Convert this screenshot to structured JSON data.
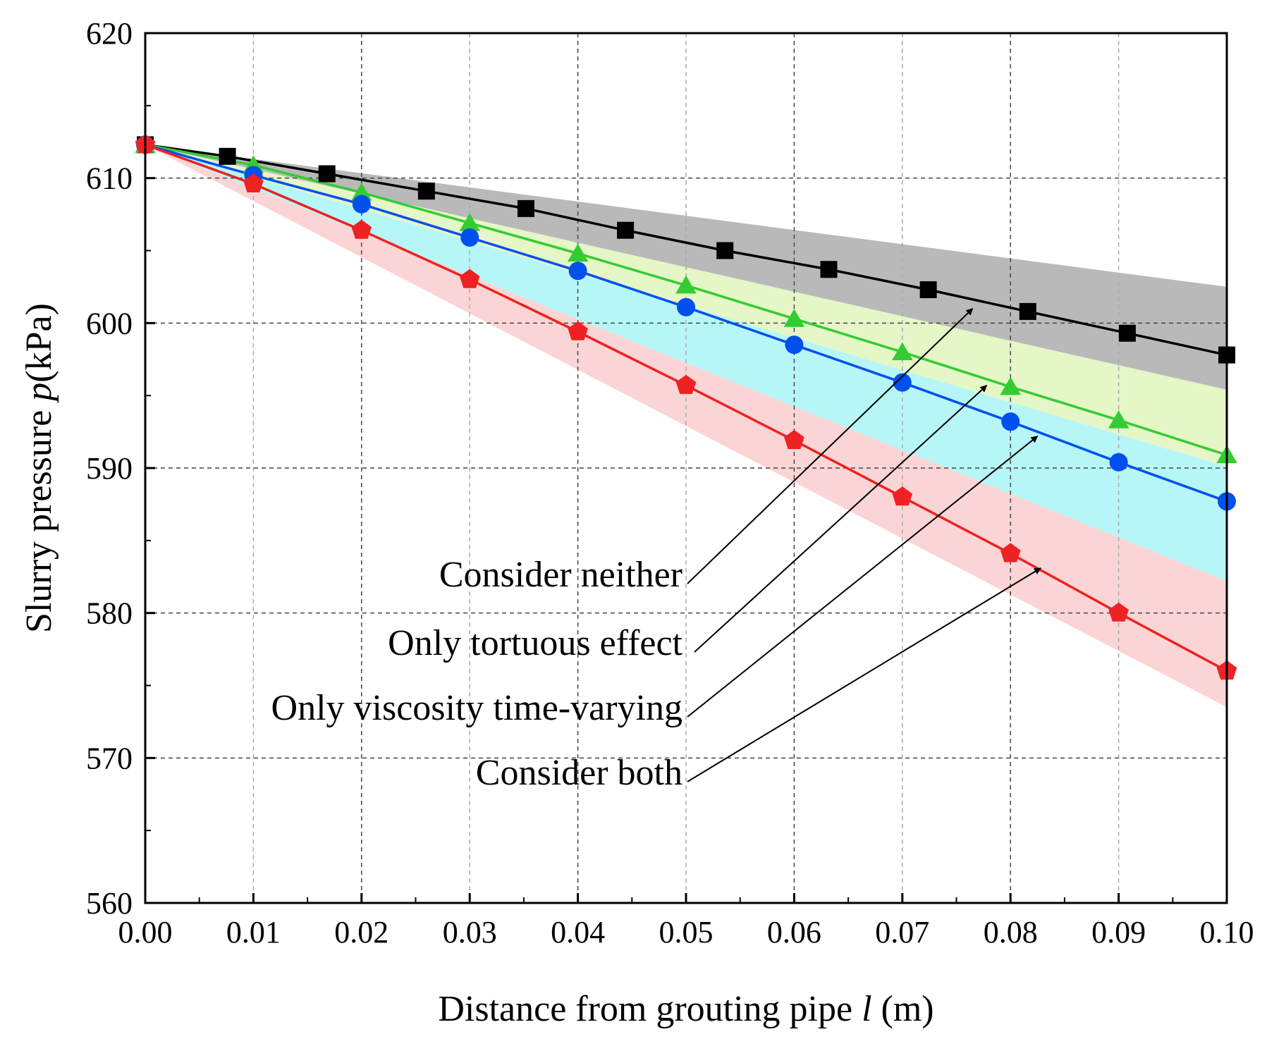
{
  "chart_data": {
    "type": "line",
    "title": "",
    "xlabel": {
      "prefix": "Distance from grouting pipe ",
      "symbol": "l",
      "suffix": " (m)"
    },
    "ylabel": {
      "prefix": "Slurry pressure ",
      "symbol": "p",
      "suffix": "(kPa)"
    },
    "xlim": [
      0,
      0.1
    ],
    "ylim": [
      560,
      620
    ],
    "xticks": [
      "0.00",
      "0.01",
      "0.02",
      "0.03",
      "0.04",
      "0.05",
      "0.06",
      "0.07",
      "0.08",
      "0.09",
      "0.10"
    ],
    "yticks": [
      "560",
      "570",
      "580",
      "590",
      "600",
      "610",
      "620"
    ],
    "grid": true,
    "series": [
      {
        "name": "Consider neither",
        "color": "#000000",
        "marker": "square",
        "band_color": "#b5b5b5",
        "band_end": [
          595.4,
          602.5
        ],
        "x": [
          0,
          0.0076,
          0.0168,
          0.026,
          0.0352,
          0.0444,
          0.0536,
          0.0632,
          0.0724,
          0.0816,
          0.0908,
          0.1
        ],
        "y": [
          612.3,
          611.5,
          610.3,
          609.1,
          607.9,
          606.4,
          605.0,
          603.7,
          602.3,
          600.8,
          599.3,
          597.8
        ]
      },
      {
        "name": "Only tortuous effect",
        "color": "#33cc33",
        "marker": "triangle",
        "band_color": "#e4f6c4",
        "band_end": [
          590.1,
          595.4
        ],
        "x": [
          0,
          0.01,
          0.02,
          0.03,
          0.04,
          0.05,
          0.06,
          0.07,
          0.08,
          0.09,
          0.1
        ],
        "y": [
          612.3,
          610.9,
          609.0,
          606.9,
          604.8,
          602.6,
          600.3,
          598.0,
          595.6,
          593.3,
          590.9
        ]
      },
      {
        "name": "Only viscosity time-varying",
        "color": "#0050ee",
        "marker": "circle",
        "band_color": "#b3f5f7",
        "band_end": [
          582.2,
          590.1
        ],
        "x": [
          0,
          0.01,
          0.02,
          0.03,
          0.04,
          0.05,
          0.06,
          0.07,
          0.08,
          0.09,
          0.1
        ],
        "y": [
          612.3,
          610.2,
          608.2,
          605.9,
          603.6,
          601.1,
          598.5,
          595.9,
          593.2,
          590.4,
          587.7
        ]
      },
      {
        "name": "Consider both",
        "color": "#ee2222",
        "marker": "pentagon",
        "band_color": "#fbd3d3",
        "band_end": [
          573.5,
          582.2
        ],
        "x": [
          0,
          0.01,
          0.02,
          0.03,
          0.04,
          0.05,
          0.06,
          0.07,
          0.08,
          0.09,
          0.1
        ],
        "y": [
          612.3,
          609.6,
          606.4,
          603.0,
          599.4,
          595.7,
          591.9,
          588.0,
          584.1,
          580.0,
          576.0
        ]
      }
    ],
    "annotations": [
      {
        "text": "Consider neither",
        "target": [
          0.0765,
          601.0
        ]
      },
      {
        "text": "Only tortuous effect",
        "target": [
          0.0778,
          595.7
        ]
      },
      {
        "text": "Only viscosity time-varying",
        "target": [
          0.0825,
          592.2
        ]
      },
      {
        "text": "Consider both",
        "target": [
          0.0828,
          583.1
        ]
      }
    ]
  }
}
